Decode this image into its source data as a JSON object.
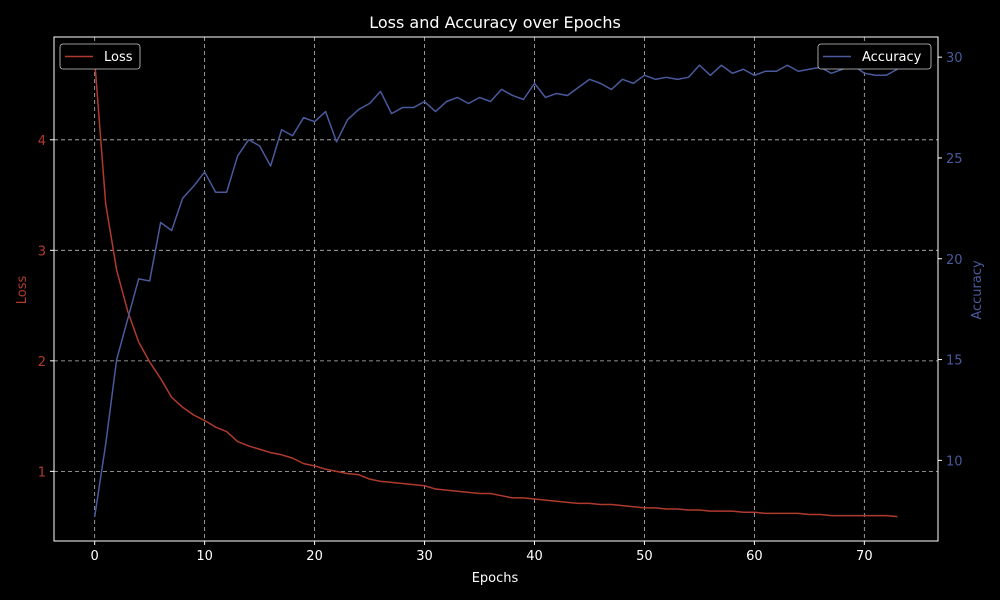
{
  "chart_data": {
    "type": "line",
    "title": "Loss and Accuracy over Epochs",
    "xlabel": "Epochs",
    "ylabel_left": "Loss",
    "ylabel_right": "Accuracy",
    "xlim": [
      -3.7,
      76.7
    ],
    "ylim_left": [
      0.37,
      4.93
    ],
    "ylim_right": [
      6.0,
      31.0
    ],
    "xticks": [
      0,
      10,
      20,
      30,
      40,
      50,
      60,
      70
    ],
    "yticks_left": [
      1,
      2,
      3,
      4
    ],
    "yticks_right": [
      10,
      15,
      20,
      25,
      30
    ],
    "grid": true,
    "legend_left": "top-left",
    "legend_right": "top-right",
    "colors": {
      "loss": "#b03a2e",
      "accuracy": "#4a5a9c",
      "grid": "#bbbbbb",
      "axis": "#ffffff",
      "text": "#ffffff"
    },
    "x": [
      0,
      1,
      2,
      3,
      4,
      5,
      6,
      7,
      8,
      9,
      10,
      11,
      12,
      13,
      14,
      15,
      16,
      17,
      18,
      19,
      20,
      21,
      22,
      23,
      24,
      25,
      26,
      27,
      28,
      29,
      30,
      31,
      32,
      33,
      34,
      35,
      36,
      37,
      38,
      39,
      40,
      41,
      42,
      43,
      44,
      45,
      46,
      47,
      48,
      49,
      50,
      51,
      52,
      53,
      54,
      55,
      56,
      57,
      58,
      59,
      60,
      61,
      62,
      63,
      64,
      65,
      66,
      67,
      68,
      69,
      70,
      71,
      72,
      73
    ],
    "series": [
      {
        "name": "Loss",
        "axis": "left",
        "color": "#b03a2e",
        "values": [
          4.72,
          3.42,
          2.82,
          2.45,
          2.17,
          1.99,
          1.84,
          1.67,
          1.58,
          1.51,
          1.46,
          1.4,
          1.36,
          1.27,
          1.23,
          1.2,
          1.17,
          1.15,
          1.12,
          1.07,
          1.05,
          1.02,
          1.0,
          0.98,
          0.97,
          0.93,
          0.91,
          0.9,
          0.89,
          0.88,
          0.87,
          0.84,
          0.83,
          0.82,
          0.81,
          0.8,
          0.8,
          0.78,
          0.76,
          0.76,
          0.75,
          0.74,
          0.73,
          0.72,
          0.71,
          0.71,
          0.7,
          0.7,
          0.69,
          0.68,
          0.67,
          0.67,
          0.66,
          0.66,
          0.65,
          0.65,
          0.64,
          0.64,
          0.64,
          0.63,
          0.63,
          0.62,
          0.62,
          0.62,
          0.62,
          0.61,
          0.61,
          0.6,
          0.6,
          0.6,
          0.6,
          0.6,
          0.6,
          0.59
        ]
      },
      {
        "name": "Accuracy",
        "axis": "right",
        "color": "#4a5a9c",
        "values": [
          7.2,
          10.8,
          15.0,
          17.0,
          19.0,
          18.9,
          21.8,
          21.4,
          23.0,
          23.6,
          24.3,
          23.3,
          23.3,
          25.1,
          25.9,
          25.6,
          24.6,
          26.4,
          26.1,
          27.0,
          26.8,
          27.3,
          25.8,
          26.9,
          27.4,
          27.7,
          28.3,
          27.2,
          27.5,
          27.5,
          27.8,
          27.3,
          27.8,
          28.0,
          27.7,
          28.0,
          27.8,
          28.4,
          28.1,
          27.9,
          28.7,
          28.0,
          28.2,
          28.1,
          28.5,
          28.9,
          28.7,
          28.4,
          28.9,
          28.7,
          29.1,
          28.9,
          29.0,
          28.9,
          29.0,
          29.6,
          29.1,
          29.6,
          29.2,
          29.4,
          29.1,
          29.3,
          29.3,
          29.6,
          29.3,
          29.4,
          29.5,
          29.2,
          29.4,
          29.6,
          29.2,
          29.1,
          29.1,
          29.4
        ]
      }
    ]
  }
}
